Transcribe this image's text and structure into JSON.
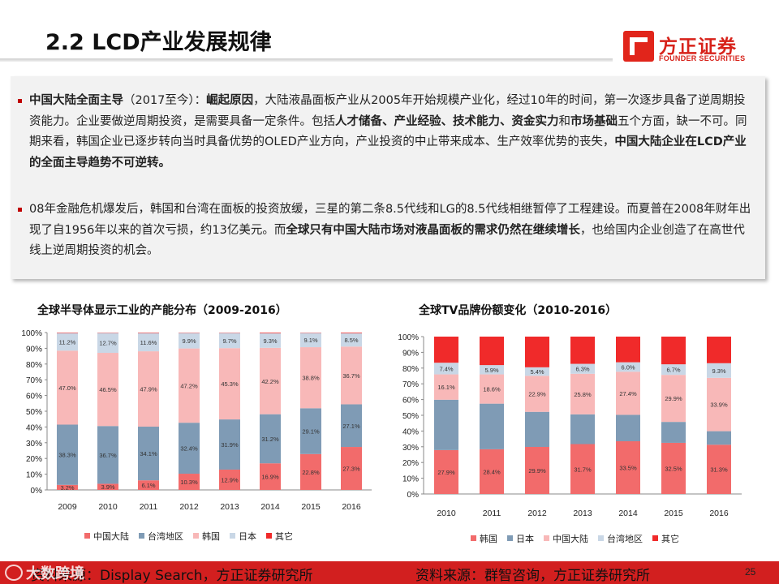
{
  "page_title": "2.2 LCD产业发展规律",
  "logo": {
    "cn": "方正证券",
    "en": "FOUNDER SECURITIES"
  },
  "para1": {
    "s1": "中国大陆全面主导",
    "s2": "（2017至今）：",
    "s3": "崛起原因",
    "s4": "，大陆液晶面板产业从2005年开始规模产业化，经过10年的时间，第一次逐步具备了逆周期投资能力。企业要做逆周期投资，是需要具备一定条件。包括",
    "s5": "人才储备、产业经验、技术能力、资金实力",
    "s6": "和",
    "s7": "市场基础",
    "s8": "五个方面，缺一不可。同期来看，韩国企业已逐步转向当时具备优势的OLED产业方向，产业投资的中止带来成本、生产效率优势的丧失，",
    "s9": "中国大陆企业在LCD产业的全面主导趋势不可逆转。"
  },
  "para2": {
    "s1": "08年金融危机爆发后，韩国和台湾在面板的投资放缓，三星的第二条8.5代线和LG的8.5代线相继暂停了工程建设。而夏普在2008年财年出现了自1956年以来的首次亏损，约13亿美元。而",
    "s2": "全球只有中国大陆市场对液晶面板的需求仍然在继续增长",
    "s3": "，也给国内企业创造了在高世代线上逆周期投资的机会。"
  },
  "chart_data": [
    {
      "type": "bar",
      "stacked": true,
      "title": "全球半导体显示工业的产能分布（2009-2016）",
      "categories": [
        "2009",
        "2010",
        "2011",
        "2012",
        "2013",
        "2014",
        "2015",
        "2016"
      ],
      "ylim": [
        0,
        100
      ],
      "yticks": [
        "0%",
        "10%",
        "20%",
        "30%",
        "40%",
        "50%",
        "60%",
        "70%",
        "80%",
        "90%",
        "100%"
      ],
      "legend_position": "bottom",
      "series": [
        {
          "name": "中国大陆",
          "color": "#f26b6b",
          "values": [
            3.2,
            3.9,
            6.1,
            10.3,
            12.9,
            16.9,
            22.8,
            27.3
          ],
          "labels": [
            "3.2%",
            "3.9%",
            "6.1%",
            "10.3%",
            "12.9%",
            "16.9%",
            "22.8%",
            "27.3%"
          ]
        },
        {
          "name": "台湾地区",
          "color": "#7f9bb5",
          "values": [
            38.3,
            36.7,
            34.1,
            32.4,
            31.9,
            31.2,
            29.1,
            27.1
          ],
          "labels": [
            "38.3%",
            "36.7%",
            "34.1%",
            "32.4%",
            "31.9%",
            "31.2%",
            "29.1%",
            "27.1%"
          ]
        },
        {
          "name": "韩国",
          "color": "#f8b8b8",
          "values": [
            47.0,
            46.5,
            47.9,
            47.2,
            45.3,
            42.2,
            38.8,
            36.7
          ],
          "labels": [
            "47.0%",
            "46.5%",
            "47.9%",
            "47.2%",
            "45.3%",
            "42.2%",
            "38.8%",
            "36.7%"
          ]
        },
        {
          "name": "日本",
          "color": "#c9d7e6",
          "values": [
            11.2,
            12.7,
            11.6,
            9.9,
            9.7,
            9.3,
            9.1,
            8.5
          ],
          "labels": [
            "11.2%",
            "12.7%",
            "11.6%",
            "9.9%",
            "9.7%",
            "9.3%",
            "9.1%",
            "8.5%"
          ]
        },
        {
          "name": "其它",
          "color": "#f02a2a",
          "values": [
            0.3,
            0.2,
            0.3,
            0.2,
            0.2,
            0.4,
            0.2,
            0.4
          ],
          "labels": [
            "",
            "",
            "",
            "",
            "",
            "",
            "",
            ""
          ]
        }
      ]
    },
    {
      "type": "bar",
      "stacked": true,
      "title": "全球TV品牌份额变化（2010-2016）",
      "categories": [
        "2010",
        "2011",
        "2012",
        "2013",
        "2014",
        "2015",
        "2016"
      ],
      "ylim": [
        0,
        100
      ],
      "yticks": [
        "0%",
        "10%",
        "20%",
        "30%",
        "40%",
        "50%",
        "60%",
        "70%",
        "80%",
        "90%",
        "100%"
      ],
      "legend_position": "bottom",
      "series": [
        {
          "name": "韩国",
          "color": "#f26b6b",
          "values": [
            27.9,
            28.4,
            29.9,
            31.7,
            33.5,
            32.5,
            31.3
          ],
          "labels": [
            "27.9%",
            "28.4%",
            "29.9%",
            "31.7%",
            "33.5%",
            "32.5%",
            "31.3%"
          ]
        },
        {
          "name": "日本",
          "color": "#7f9bb5",
          "values": [
            32.0,
            29.0,
            22.3,
            18.9,
            16.8,
            13.3,
            8.6
          ],
          "labels": [
            "",
            "",
            "",
            "",
            "",
            "",
            ""
          ]
        },
        {
          "name": "中国大陆",
          "color": "#f8b8b8",
          "values": [
            16.1,
            18.6,
            22.9,
            25.8,
            27.4,
            29.9,
            33.9
          ],
          "labels": [
            "16.1%",
            "18.6%",
            "22.9%",
            "25.8%",
            "27.4%",
            "29.9%",
            "33.9%"
          ]
        },
        {
          "name": "台湾地区",
          "color": "#c9d7e6",
          "values": [
            7.4,
            5.9,
            5.4,
            6.3,
            6.0,
            6.7,
            9.3
          ],
          "labels": [
            "7.4%",
            "5.9%",
            "5.4%",
            "6.3%",
            "6.0%",
            "6.7%",
            "9.3%"
          ]
        },
        {
          "name": "其它",
          "color": "#f02a2a",
          "values": [
            16.6,
            18.1,
            19.5,
            17.3,
            16.3,
            17.6,
            16.9
          ],
          "labels": [
            "",
            "",
            "",
            "",
            "",
            "",
            ""
          ]
        }
      ]
    }
  ],
  "footer": {
    "source_left": "资料来源：Display Search，方正证券研究所",
    "source_right": "资料来源：群智咨询，方正证券研究所",
    "watermark": "大数跨境",
    "page_number": "25"
  }
}
